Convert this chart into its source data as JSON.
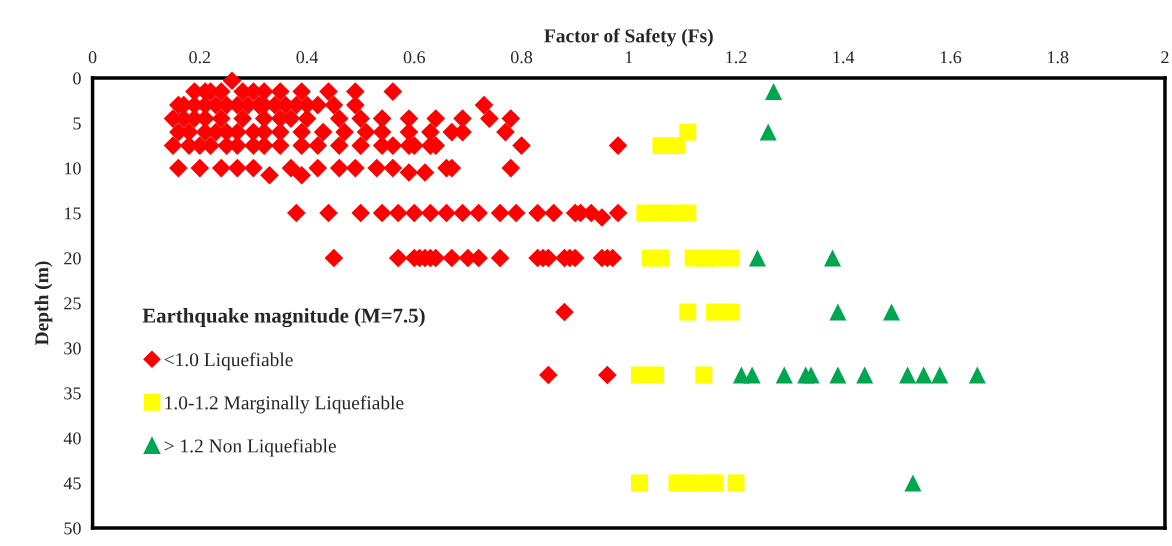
{
  "chart_data": {
    "type": "scatter",
    "xlabel": "Factor of Safety (Fs)",
    "ylabel": "Depth (m)",
    "legend_title": "Earthquake magnitude (M=7.5)",
    "xlim": [
      0,
      2
    ],
    "xticks": [
      0,
      0.2,
      0.4,
      0.6,
      0.8,
      1,
      1.2,
      1.4,
      1.6,
      1.8,
      2
    ],
    "ylim": [
      50,
      0
    ],
    "yticks": [
      0,
      5,
      10,
      15,
      20,
      25,
      30,
      35,
      40,
      45,
      50
    ],
    "grid": false,
    "legend": "bottom left",
    "series": [
      {
        "name": "<1.0 Liquefiable",
        "color": "#ff0000",
        "marker": "diamond",
        "x": [
          0.26,
          0.19,
          0.21,
          0.22,
          0.24,
          0.28,
          0.3,
          0.32,
          0.35,
          0.39,
          0.44,
          0.49,
          0.56,
          0.16,
          0.17,
          0.19,
          0.21,
          0.23,
          0.25,
          0.27,
          0.29,
          0.31,
          0.32,
          0.34,
          0.36,
          0.38,
          0.4,
          0.42,
          0.45,
          0.49,
          0.73,
          0.15,
          0.17,
          0.19,
          0.21,
          0.24,
          0.28,
          0.32,
          0.35,
          0.37,
          0.4,
          0.46,
          0.5,
          0.54,
          0.59,
          0.64,
          0.69,
          0.74,
          0.78,
          0.16,
          0.18,
          0.21,
          0.23,
          0.25,
          0.27,
          0.3,
          0.32,
          0.35,
          0.39,
          0.43,
          0.47,
          0.51,
          0.54,
          0.59,
          0.63,
          0.67,
          0.69,
          0.77,
          0.15,
          0.18,
          0.2,
          0.22,
          0.25,
          0.27,
          0.3,
          0.32,
          0.35,
          0.39,
          0.42,
          0.46,
          0.5,
          0.54,
          0.59,
          0.63,
          0.56,
          0.6,
          0.64,
          0.8,
          0.98,
          0.16,
          0.2,
          0.24,
          0.27,
          0.3,
          0.33,
          0.37,
          0.39,
          0.42,
          0.46,
          0.49,
          0.53,
          0.56,
          0.59,
          0.62,
          0.66,
          0.67,
          0.78,
          0.38,
          0.44,
          0.5,
          0.54,
          0.57,
          0.6,
          0.63,
          0.66,
          0.69,
          0.72,
          0.76,
          0.79,
          0.83,
          0.86,
          0.9,
          0.91,
          0.93,
          0.95,
          0.98,
          0.45,
          0.57,
          0.6,
          0.61,
          0.62,
          0.63,
          0.64,
          0.67,
          0.7,
          0.72,
          0.76,
          0.83,
          0.84,
          0.85,
          0.88,
          0.89,
          0.9,
          0.95,
          0.96,
          0.97,
          0.88,
          0.85,
          0.96
        ],
        "values": [
          0.3,
          1.5,
          1.5,
          1.5,
          1.5,
          1.5,
          1.5,
          1.5,
          1.5,
          1.5,
          1.5,
          1.5,
          1.5,
          3,
          3,
          3,
          3,
          3,
          3,
          3,
          3,
          3,
          3,
          3,
          3,
          3,
          3,
          3,
          3,
          3,
          3,
          4.5,
          4.5,
          4.5,
          4.5,
          4.5,
          4.5,
          4.5,
          4.5,
          4.5,
          4.5,
          4.5,
          4.5,
          4.5,
          4.5,
          4.5,
          4.5,
          4.5,
          4.5,
          6,
          6,
          6,
          6,
          6,
          6,
          6,
          6,
          6,
          6,
          6,
          6,
          6,
          6,
          6,
          6,
          6,
          6,
          6,
          7.5,
          7.5,
          7.5,
          7.5,
          7.5,
          7.5,
          7.5,
          7.5,
          7.5,
          7.5,
          7.5,
          7.5,
          7.5,
          7.5,
          7.5,
          7.5,
          7.5,
          7.5,
          7.5,
          7.5,
          7.5,
          10,
          10,
          10,
          10,
          10,
          10.8,
          10,
          10.8,
          10,
          10,
          10,
          10,
          10,
          10.5,
          10.5,
          10,
          10,
          10,
          15,
          15,
          15,
          15,
          15,
          15,
          15,
          15,
          15,
          15,
          15,
          15,
          15,
          15,
          15,
          15,
          15,
          15.5,
          15,
          20,
          20,
          20,
          20,
          20,
          20,
          20,
          20,
          20,
          20,
          20,
          20,
          20,
          20,
          20,
          20,
          20,
          20,
          20,
          20,
          26,
          33,
          33
        ]
      },
      {
        "name": "1.0-1.2 Marginally Liquefiable",
        "color": "#ffff00",
        "marker": "square",
        "x": [
          1.11,
          1.06,
          1.09,
          1.03,
          1.06,
          1.09,
          1.11,
          1.04,
          1.06,
          1.12,
          1.14,
          1.16,
          1.19,
          1.11,
          1.16,
          1.19,
          1.02,
          1.05,
          1.14,
          1.02,
          1.09,
          1.11,
          1.14,
          1.16,
          1.2
        ],
        "values": [
          6,
          7.5,
          7.5,
          15,
          15,
          15,
          15,
          20,
          20,
          20,
          20,
          20,
          20,
          26,
          26,
          26,
          33,
          33,
          33,
          45,
          45,
          45,
          45,
          45,
          45
        ]
      },
      {
        "name": "> 1.2 Non Liquefiable",
        "color": "#00a650",
        "marker": "triangle",
        "x": [
          1.27,
          1.26,
          1.24,
          1.38,
          1.39,
          1.49,
          1.21,
          1.23,
          1.29,
          1.33,
          1.34,
          1.39,
          1.44,
          1.52,
          1.55,
          1.58,
          1.65,
          1.53
        ],
        "values": [
          1.5,
          6,
          20,
          20,
          26,
          26,
          33,
          33,
          33,
          33,
          33,
          33,
          33,
          33,
          33,
          33,
          33,
          45
        ]
      }
    ]
  }
}
